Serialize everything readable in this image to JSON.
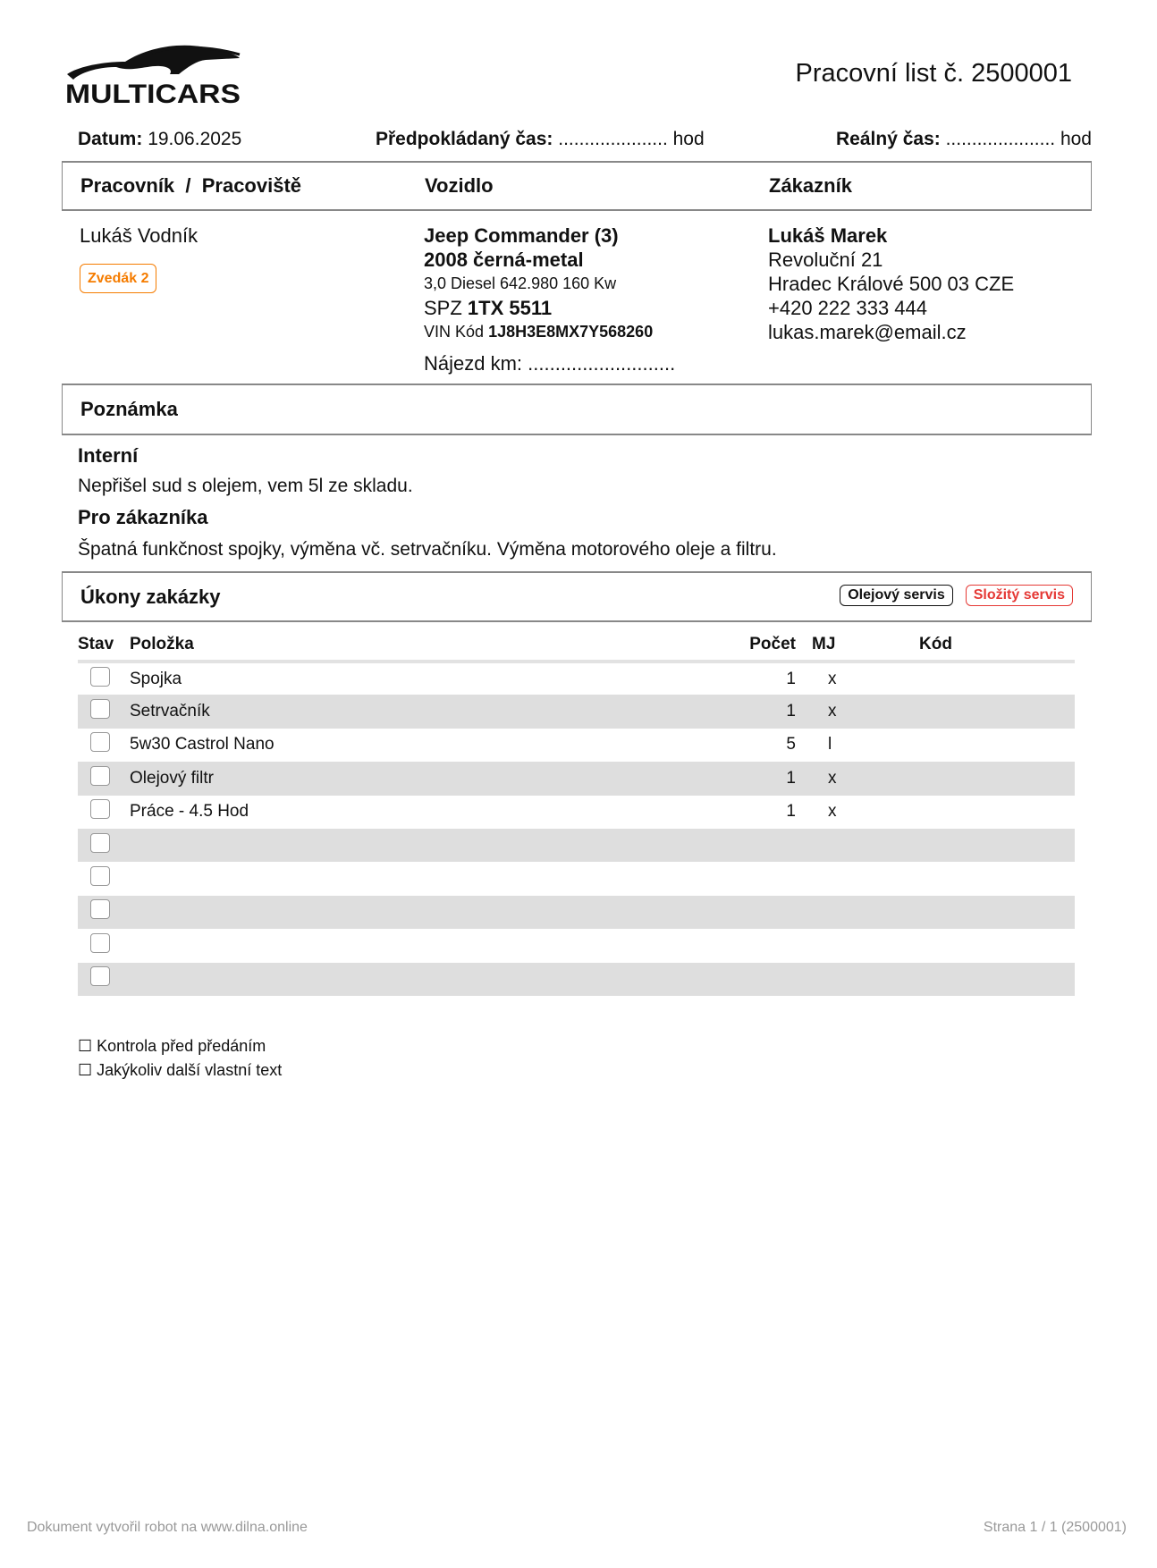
{
  "header": {
    "logo_text": "MULTICARS",
    "title": "Pracovní list č. 2500001"
  },
  "info": {
    "date_label": "Datum:",
    "date": "19.06.2025",
    "expected_label": "Předpokládaný čas:",
    "expected_value": "..................... hod",
    "real_label": "Reálný čas:",
    "real_value": "..................... hod"
  },
  "sections": {
    "worker": "Pracovník  /  Pracoviště",
    "vehicle": "Vozidlo",
    "customer": "Zákazník",
    "note": "Poznámka",
    "tasks": "Úkony zakázky"
  },
  "worker": {
    "name": "Lukáš Vodník",
    "workplace_badge": "Zvedák 2",
    "badge_color": "#f57c00"
  },
  "vehicle": {
    "model": "Jeep Commander (3)",
    "year_color": "2008 černá-metal",
    "engine": "3,0 Diesel 642.980 160 Kw",
    "spz_label": "SPZ",
    "spz": "1TX 5511",
    "vin_label": "VIN Kód",
    "vin": "1J8H3E8MX7Y568260",
    "mileage": "Nájezd km: ..........................."
  },
  "customer": {
    "name": "Lukáš Marek",
    "street": "Revoluční 21",
    "city": "Hradec Králové 500 03 CZE",
    "phone": "+420 222 333 444",
    "email": "lukas.marek@email.cz"
  },
  "notes": {
    "internal_label": "Interní",
    "internal": "Nepřišel sud s olejem, vem 5l ze skladu.",
    "customer_label": "Pro zákazníka",
    "customer": "Špatná funkčnost spojky, výměna vč. setrvačníku. Výměna motorového oleje a filtru."
  },
  "tags": [
    {
      "label": "Olejový servis",
      "color": "#111111"
    },
    {
      "label": "Složitý servis",
      "color": "#e53935"
    }
  ],
  "table": {
    "columns": [
      "Stav",
      "Položka",
      "Počet",
      "MJ",
      "Kód"
    ],
    "rows": [
      {
        "item": "Spojka",
        "qty": "1",
        "unit": "x",
        "code": ""
      },
      {
        "item": "Setrvačník",
        "qty": "1",
        "unit": "x",
        "code": ""
      },
      {
        "item": "5w30 Castrol Nano",
        "qty": "5",
        "unit": "l",
        "code": ""
      },
      {
        "item": "Olejový filtr",
        "qty": "1",
        "unit": "x",
        "code": ""
      },
      {
        "item": "Práce - 4.5 Hod",
        "qty": "1",
        "unit": "x",
        "code": ""
      },
      {
        "item": "",
        "qty": "",
        "unit": "",
        "code": ""
      },
      {
        "item": "",
        "qty": "",
        "unit": "",
        "code": ""
      },
      {
        "item": "",
        "qty": "",
        "unit": "",
        "code": ""
      },
      {
        "item": "",
        "qty": "",
        "unit": "",
        "code": ""
      },
      {
        "item": "",
        "qty": "",
        "unit": "",
        "code": ""
      }
    ]
  },
  "checklist": [
    "☐ Kontrola před předáním",
    "☐ Jakýkoliv další vlastní text"
  ],
  "footer": {
    "left": "Dokument vytvořil robot na www.dilna.online",
    "right": "Strana 1 / 1 (2500001)"
  }
}
